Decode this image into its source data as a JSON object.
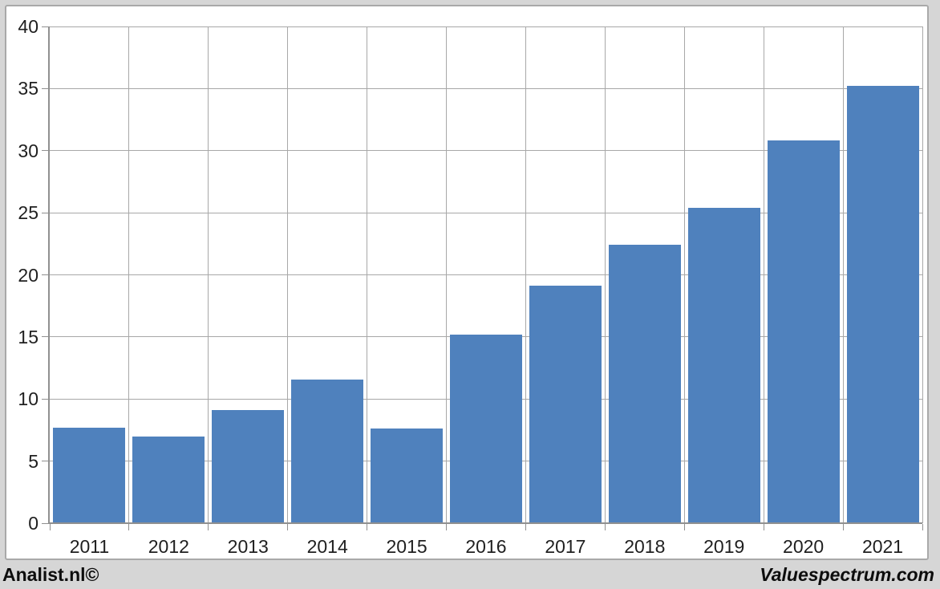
{
  "chart_data": {
    "type": "bar",
    "title": "",
    "xlabel": "",
    "ylabel": "",
    "categories": [
      "2011",
      "2012",
      "2013",
      "2014",
      "2015",
      "2016",
      "2017",
      "2018",
      "2019",
      "2020",
      "2021"
    ],
    "values": [
      7.7,
      7.0,
      9.1,
      11.6,
      7.6,
      15.2,
      19.1,
      22.4,
      25.4,
      30.8,
      35.2
    ],
    "ylim": [
      0,
      40
    ],
    "yticks": [
      0,
      5,
      10,
      15,
      20,
      25,
      30,
      35,
      40
    ],
    "grid": true,
    "legend": false,
    "bar_color": "#4f81bd"
  },
  "footer": {
    "left": "Analist.nl©",
    "right": "Valuespectrum.com"
  },
  "colors": {
    "page_bg": "#d6d6d6",
    "panel_bg": "#ffffff",
    "panel_border": "#a9a9a9",
    "gridline": "#a8a8a8",
    "axis": "#909090",
    "bar": "#4f81bd",
    "text": "#1f1f1f"
  }
}
